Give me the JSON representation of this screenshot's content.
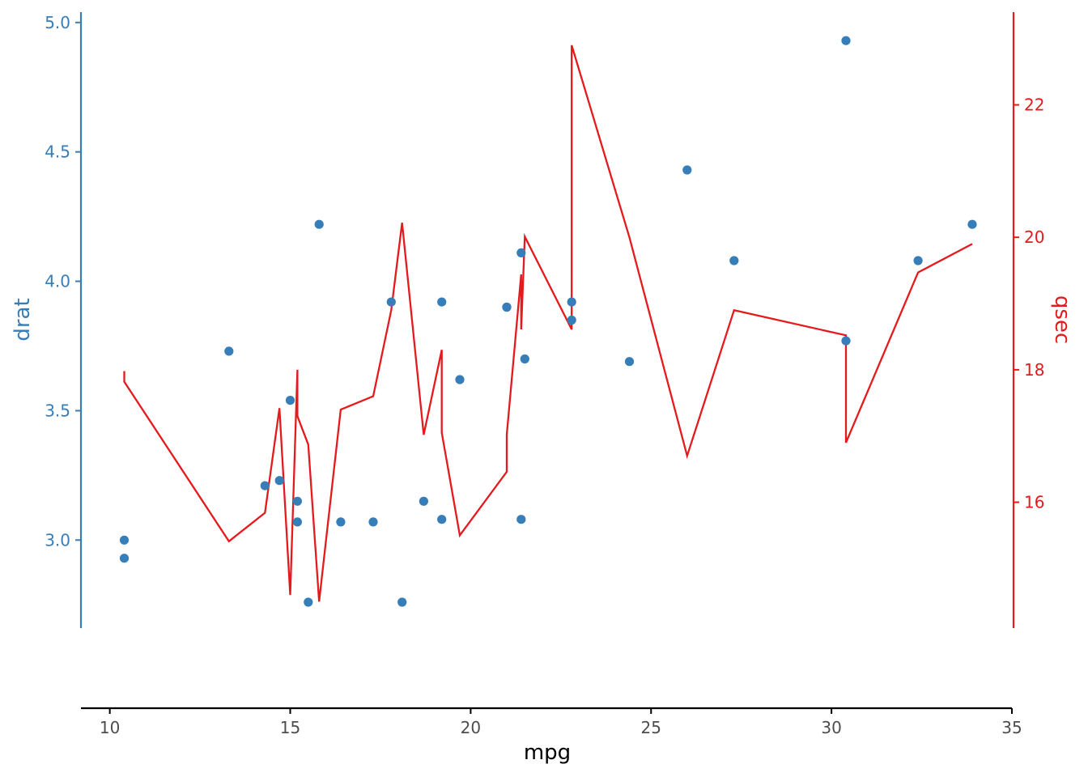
{
  "chart_data": {
    "type": "scatter",
    "xlabel": "mpg",
    "ylabel_left": "drat",
    "ylabel_right": "qsec",
    "xlim": [
      9.2,
      35
    ],
    "ylim_left": [
      2.66,
      5.04
    ],
    "ylim_right": [
      14.1,
      23.4
    ],
    "x_ticks": [
      10,
      15,
      20,
      25,
      30,
      35
    ],
    "y_left_ticks": [
      3.0,
      3.5,
      4.0,
      4.5,
      5.0
    ],
    "y_right_ticks": [
      16,
      18,
      20,
      22
    ],
    "x_tick_labels": [
      "10",
      "15",
      "20",
      "25",
      "30",
      "35"
    ],
    "y_left_tick_labels": [
      "3.0",
      "3.5",
      "4.0",
      "4.5",
      "5.0"
    ],
    "y_right_tick_labels": [
      "16",
      "18",
      "20",
      "22"
    ],
    "colors": {
      "drat": "#377eb8",
      "qsec": "#e41a1c",
      "x_axis": "#000000",
      "tick_text": "#4d4d4d"
    },
    "series": [
      {
        "name": "drat",
        "type": "scatter",
        "axis": "left",
        "points": [
          [
            10.4,
            2.93
          ],
          [
            10.4,
            3.0
          ],
          [
            13.3,
            3.73
          ],
          [
            14.3,
            3.21
          ],
          [
            14.7,
            3.23
          ],
          [
            15.0,
            3.54
          ],
          [
            15.2,
            3.15
          ],
          [
            15.2,
            3.07
          ],
          [
            15.5,
            2.76
          ],
          [
            15.8,
            4.22
          ],
          [
            16.4,
            3.07
          ],
          [
            17.3,
            3.07
          ],
          [
            17.8,
            3.92
          ],
          [
            18.1,
            2.76
          ],
          [
            18.7,
            3.15
          ],
          [
            19.2,
            3.92
          ],
          [
            19.2,
            3.08
          ],
          [
            19.7,
            3.62
          ],
          [
            21.0,
            3.9
          ],
          [
            21.0,
            3.9
          ],
          [
            21.4,
            3.08
          ],
          [
            21.4,
            4.11
          ],
          [
            21.5,
            3.7
          ],
          [
            22.8,
            3.85
          ],
          [
            22.8,
            3.92
          ],
          [
            24.4,
            3.69
          ],
          [
            26.0,
            4.43
          ],
          [
            27.3,
            4.08
          ],
          [
            30.4,
            4.93
          ],
          [
            30.4,
            3.77
          ],
          [
            32.4,
            4.08
          ],
          [
            33.9,
            4.22
          ]
        ]
      },
      {
        "name": "qsec",
        "type": "line",
        "axis": "right",
        "points": [
          [
            10.4,
            17.98
          ],
          [
            10.4,
            17.82
          ],
          [
            13.3,
            15.41
          ],
          [
            14.3,
            15.84
          ],
          [
            14.7,
            17.42
          ],
          [
            15.0,
            14.6
          ],
          [
            15.2,
            18.0
          ],
          [
            15.2,
            17.3
          ],
          [
            15.5,
            16.87
          ],
          [
            15.8,
            14.5
          ],
          [
            16.4,
            17.4
          ],
          [
            17.3,
            17.6
          ],
          [
            17.8,
            18.9
          ],
          [
            18.1,
            20.22
          ],
          [
            18.7,
            17.02
          ],
          [
            19.2,
            18.3
          ],
          [
            19.2,
            17.05
          ],
          [
            19.7,
            15.5
          ],
          [
            21.0,
            16.46
          ],
          [
            21.0,
            17.02
          ],
          [
            21.4,
            19.44
          ],
          [
            21.4,
            18.61
          ],
          [
            21.5,
            20.01
          ],
          [
            22.8,
            18.61
          ],
          [
            22.8,
            22.9
          ],
          [
            24.4,
            20.0
          ],
          [
            26.0,
            16.7
          ],
          [
            27.3,
            18.9
          ],
          [
            30.4,
            18.52
          ],
          [
            30.4,
            16.9
          ],
          [
            32.4,
            19.47
          ],
          [
            33.9,
            19.9
          ]
        ]
      }
    ]
  }
}
